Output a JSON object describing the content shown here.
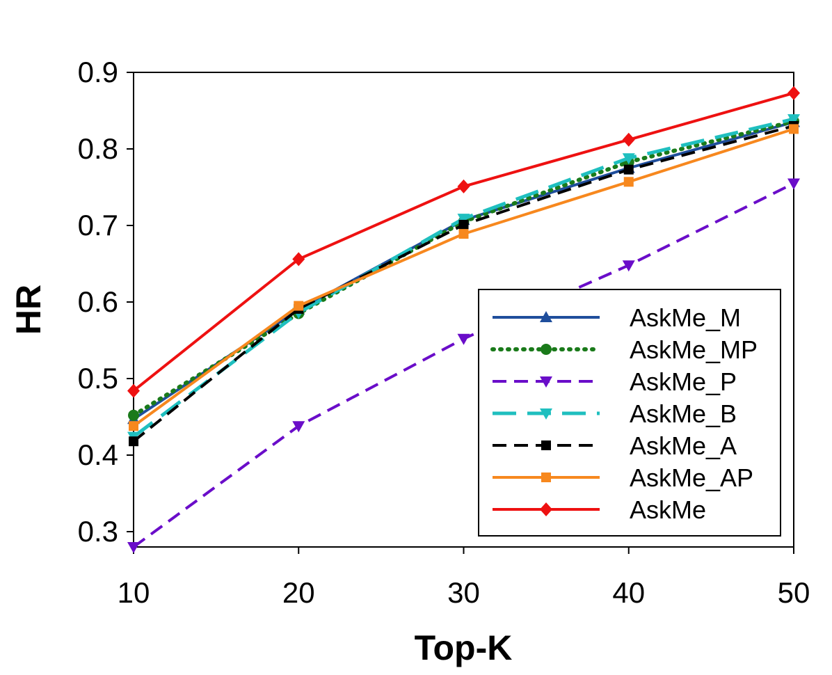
{
  "chart_data": {
    "type": "line",
    "title": "",
    "xlabel": "Top-K",
    "ylabel": "HR",
    "x": [
      10,
      20,
      30,
      40,
      50
    ],
    "xlim": [
      10,
      50
    ],
    "ylim": [
      0.28,
      0.9
    ],
    "xticks": [
      "10",
      "20",
      "30",
      "40",
      "50"
    ],
    "yticks": [
      "0.3",
      "0.4",
      "0.5",
      "0.6",
      "0.7",
      "0.8",
      "0.9"
    ],
    "grid": false,
    "legend_position": "bottom-right",
    "series": [
      {
        "name": "AskMe_M",
        "values": [
          0.447,
          0.59,
          0.707,
          0.775,
          0.835
        ],
        "color": "#1f4e9c",
        "dash": "solid",
        "marker": "triangle-up"
      },
      {
        "name": "AskMe_MP",
        "values": [
          0.452,
          0.585,
          0.705,
          0.783,
          0.836
        ],
        "color": "#1a7a1a",
        "dash": "dotted",
        "marker": "circle"
      },
      {
        "name": "AskMe_P",
        "values": [
          0.28,
          0.438,
          0.552,
          0.648,
          0.755
        ],
        "color": "#6a0dc9",
        "dash": "dashed",
        "marker": "triangle-down"
      },
      {
        "name": "AskMe_B",
        "values": [
          0.424,
          0.586,
          0.709,
          0.788,
          0.839
        ],
        "color": "#1fbfbf",
        "dash": "longdash",
        "marker": "triangle-down"
      },
      {
        "name": "AskMe_A",
        "values": [
          0.418,
          0.591,
          0.701,
          0.773,
          0.83
        ],
        "color": "#000000",
        "dash": "dashed",
        "marker": "square"
      },
      {
        "name": "AskMe_AP",
        "values": [
          0.438,
          0.595,
          0.689,
          0.757,
          0.826
        ],
        "color": "#f7881e",
        "dash": "solid",
        "marker": "square"
      },
      {
        "name": "AskMe",
        "values": [
          0.484,
          0.656,
          0.751,
          0.812,
          0.873
        ],
        "color": "#ee1111",
        "dash": "solid",
        "marker": "diamond"
      }
    ]
  }
}
